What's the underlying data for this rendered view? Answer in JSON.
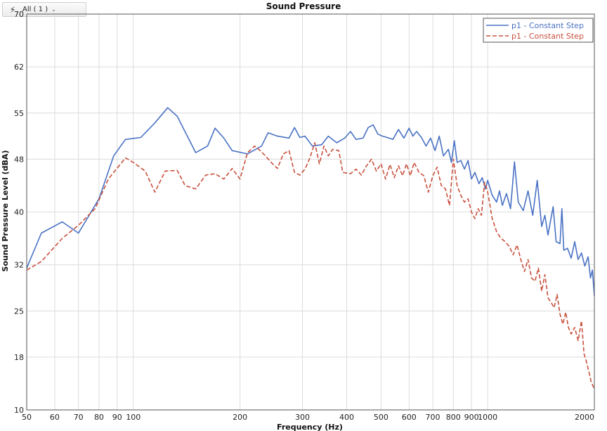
{
  "toolbar": {
    "filter_label": "All ( 1 )",
    "filter_icon": "lightning-icon",
    "chevron_icon": "chevron-down-icon"
  },
  "chart_data": {
    "type": "line",
    "title": "Sound Pressure",
    "xlabel": "Frequency (Hz)",
    "ylabel": "Sound Pressure Level (dBA)",
    "x_scale": "log",
    "xlim": [
      50,
      2000
    ],
    "ylim": [
      10,
      70
    ],
    "y_ticks": [
      {
        "value": 10,
        "label": "10"
      },
      {
        "value": 18,
        "label": "18"
      },
      {
        "value": 25,
        "label": "25"
      },
      {
        "value": 32,
        "label": "32"
      },
      {
        "value": 40,
        "label": "40"
      },
      {
        "value": 48,
        "label": "48"
      },
      {
        "value": 55,
        "label": "55"
      },
      {
        "value": 62,
        "label": "62"
      },
      {
        "value": 70,
        "label": "70"
      }
    ],
    "x_ticks": [
      {
        "value": 50,
        "label": "50"
      },
      {
        "value": 60,
        "label": "60"
      },
      {
        "value": 70,
        "label": "70"
      },
      {
        "value": 80,
        "label": "80"
      },
      {
        "value": 90,
        "label": "90"
      },
      {
        "value": 100,
        "label": "100"
      },
      {
        "value": 200,
        "label": "200"
      },
      {
        "value": 300,
        "label": "300"
      },
      {
        "value": 400,
        "label": "400"
      },
      {
        "value": 500,
        "label": "500"
      },
      {
        "value": 600,
        "label": "600"
      },
      {
        "value": 700,
        "label": "700"
      },
      {
        "value": 800,
        "label": "800"
      },
      {
        "value": 900,
        "label": "900"
      },
      {
        "value": 1000,
        "label": "1000"
      },
      {
        "value": 2000,
        "label": "2000"
      }
    ],
    "grid": true,
    "legend_position": "top-right",
    "series": [
      {
        "name": "p1  - Constant Step",
        "color": "#4a72c4",
        "dash": "solid",
        "points": [
          [
            50,
            31.5
          ],
          [
            55,
            36.8
          ],
          [
            63,
            38.5
          ],
          [
            70,
            36.8
          ],
          [
            80,
            42
          ],
          [
            88,
            48.5
          ],
          [
            95,
            51
          ],
          [
            105,
            51.3
          ],
          [
            115,
            53.5
          ],
          [
            125,
            55.8
          ],
          [
            133,
            54.5
          ],
          [
            150,
            49
          ],
          [
            162,
            50
          ],
          [
            170,
            52.7
          ],
          [
            180,
            51.2
          ],
          [
            190,
            49.3
          ],
          [
            210,
            48.8
          ],
          [
            230,
            50
          ],
          [
            240,
            52
          ],
          [
            255,
            51.5
          ],
          [
            275,
            51.2
          ],
          [
            285,
            52.8
          ],
          [
            295,
            51.3
          ],
          [
            305,
            51.5
          ],
          [
            320,
            50
          ],
          [
            340,
            50.2
          ],
          [
            355,
            51.5
          ],
          [
            375,
            50.5
          ],
          [
            395,
            51.2
          ],
          [
            410,
            52.2
          ],
          [
            425,
            51
          ],
          [
            445,
            51.2
          ],
          [
            460,
            52.8
          ],
          [
            475,
            53.2
          ],
          [
            490,
            51.8
          ],
          [
            505,
            51.5
          ],
          [
            520,
            51.3
          ],
          [
            540,
            51
          ],
          [
            560,
            52.5
          ],
          [
            580,
            51.2
          ],
          [
            600,
            52.7
          ],
          [
            615,
            51.5
          ],
          [
            630,
            52.2
          ],
          [
            650,
            51.3
          ],
          [
            670,
            50
          ],
          [
            690,
            51.2
          ],
          [
            710,
            49.3
          ],
          [
            730,
            51.5
          ],
          [
            750,
            48.5
          ],
          [
            775,
            49.5
          ],
          [
            790,
            47.5
          ],
          [
            805,
            50.8
          ],
          [
            820,
            47.5
          ],
          [
            840,
            47.8
          ],
          [
            860,
            46.5
          ],
          [
            880,
            47.8
          ],
          [
            900,
            45
          ],
          [
            920,
            46
          ],
          [
            945,
            44.3
          ],
          [
            965,
            45.2
          ],
          [
            985,
            43.5
          ],
          [
            1000,
            44.8
          ],
          [
            1030,
            42.5
          ],
          [
            1060,
            41.5
          ],
          [
            1080,
            43.2
          ],
          [
            1100,
            41
          ],
          [
            1130,
            42.8
          ],
          [
            1160,
            40.5
          ],
          [
            1190,
            47.6
          ],
          [
            1220,
            41.5
          ],
          [
            1260,
            40.2
          ],
          [
            1300,
            43.2
          ],
          [
            1340,
            39.5
          ],
          [
            1380,
            44.8
          ],
          [
            1420,
            37.8
          ],
          [
            1450,
            39.5
          ],
          [
            1480,
            36.5
          ],
          [
            1530,
            40.8
          ],
          [
            1560,
            35.5
          ],
          [
            1600,
            35.2
          ],
          [
            1620,
            40.5
          ],
          [
            1640,
            34.2
          ],
          [
            1680,
            34.5
          ],
          [
            1720,
            33
          ],
          [
            1760,
            35.5
          ],
          [
            1800,
            32.8
          ],
          [
            1840,
            33.8
          ],
          [
            1880,
            31.8
          ],
          [
            1920,
            33.2
          ],
          [
            1950,
            30
          ],
          [
            1975,
            31.2
          ],
          [
            2000,
            27.3
          ]
        ]
      },
      {
        "name": "p1  - Constant Step",
        "color": "#c8503d",
        "dash": "dashed",
        "points": [
          [
            50,
            31.2
          ],
          [
            55,
            32.5
          ],
          [
            63,
            36
          ],
          [
            70,
            38
          ],
          [
            78,
            40.5
          ],
          [
            85,
            45
          ],
          [
            95,
            48.2
          ],
          [
            100,
            47.5
          ],
          [
            108,
            46.2
          ],
          [
            115,
            43
          ],
          [
            123,
            46.2
          ],
          [
            133,
            46.3
          ],
          [
            140,
            44
          ],
          [
            150,
            43.5
          ],
          [
            160,
            45.6
          ],
          [
            170,
            45.8
          ],
          [
            180,
            45
          ],
          [
            190,
            46.6
          ],
          [
            200,
            45
          ],
          [
            210,
            49
          ],
          [
            220,
            50
          ],
          [
            228,
            49.3
          ],
          [
            235,
            48.6
          ],
          [
            245,
            47.5
          ],
          [
            255,
            46.6
          ],
          [
            265,
            48.8
          ],
          [
            275,
            49.3
          ],
          [
            285,
            46
          ],
          [
            295,
            45.6
          ],
          [
            305,
            46.5
          ],
          [
            315,
            48.2
          ],
          [
            325,
            50.5
          ],
          [
            335,
            47.3
          ],
          [
            345,
            50
          ],
          [
            355,
            48.5
          ],
          [
            365,
            49.5
          ],
          [
            380,
            49.3
          ],
          [
            390,
            46
          ],
          [
            410,
            45.8
          ],
          [
            425,
            46.5
          ],
          [
            440,
            45.6
          ],
          [
            455,
            47
          ],
          [
            470,
            48
          ],
          [
            485,
            46.2
          ],
          [
            500,
            47.3
          ],
          [
            515,
            45
          ],
          [
            530,
            47.2
          ],
          [
            545,
            45.2
          ],
          [
            560,
            47
          ],
          [
            575,
            45.5
          ],
          [
            590,
            47.3
          ],
          [
            605,
            45.5
          ],
          [
            620,
            47.5
          ],
          [
            640,
            46
          ],
          [
            660,
            45.5
          ],
          [
            680,
            43
          ],
          [
            700,
            45.5
          ],
          [
            720,
            46.8
          ],
          [
            740,
            44
          ],
          [
            760,
            43.5
          ],
          [
            780,
            41
          ],
          [
            800,
            48
          ],
          [
            820,
            44
          ],
          [
            840,
            42.5
          ],
          [
            860,
            41.5
          ],
          [
            880,
            42
          ],
          [
            900,
            40
          ],
          [
            920,
            39
          ],
          [
            940,
            40.5
          ],
          [
            960,
            39.5
          ],
          [
            980,
            44.5
          ],
          [
            1000,
            43
          ],
          [
            1030,
            39
          ],
          [
            1060,
            37
          ],
          [
            1090,
            36
          ],
          [
            1120,
            35.5
          ],
          [
            1150,
            34.8
          ],
          [
            1180,
            33.5
          ],
          [
            1210,
            35
          ],
          [
            1240,
            32.8
          ],
          [
            1270,
            31
          ],
          [
            1300,
            32.8
          ],
          [
            1330,
            30
          ],
          [
            1360,
            29.5
          ],
          [
            1390,
            31.5
          ],
          [
            1420,
            28
          ],
          [
            1450,
            30.5
          ],
          [
            1480,
            27
          ],
          [
            1510,
            26.3
          ],
          [
            1540,
            25.5
          ],
          [
            1570,
            27.5
          ],
          [
            1600,
            24.5
          ],
          [
            1630,
            23
          ],
          [
            1660,
            24.8
          ],
          [
            1690,
            22.5
          ],
          [
            1720,
            21.5
          ],
          [
            1760,
            22.5
          ],
          [
            1800,
            20.5
          ],
          [
            1840,
            23.5
          ],
          [
            1870,
            18.5
          ],
          [
            1900,
            17.3
          ],
          [
            1930,
            15.8
          ],
          [
            1960,
            14.2
          ],
          [
            2000,
            13.2
          ]
        ]
      }
    ]
  }
}
